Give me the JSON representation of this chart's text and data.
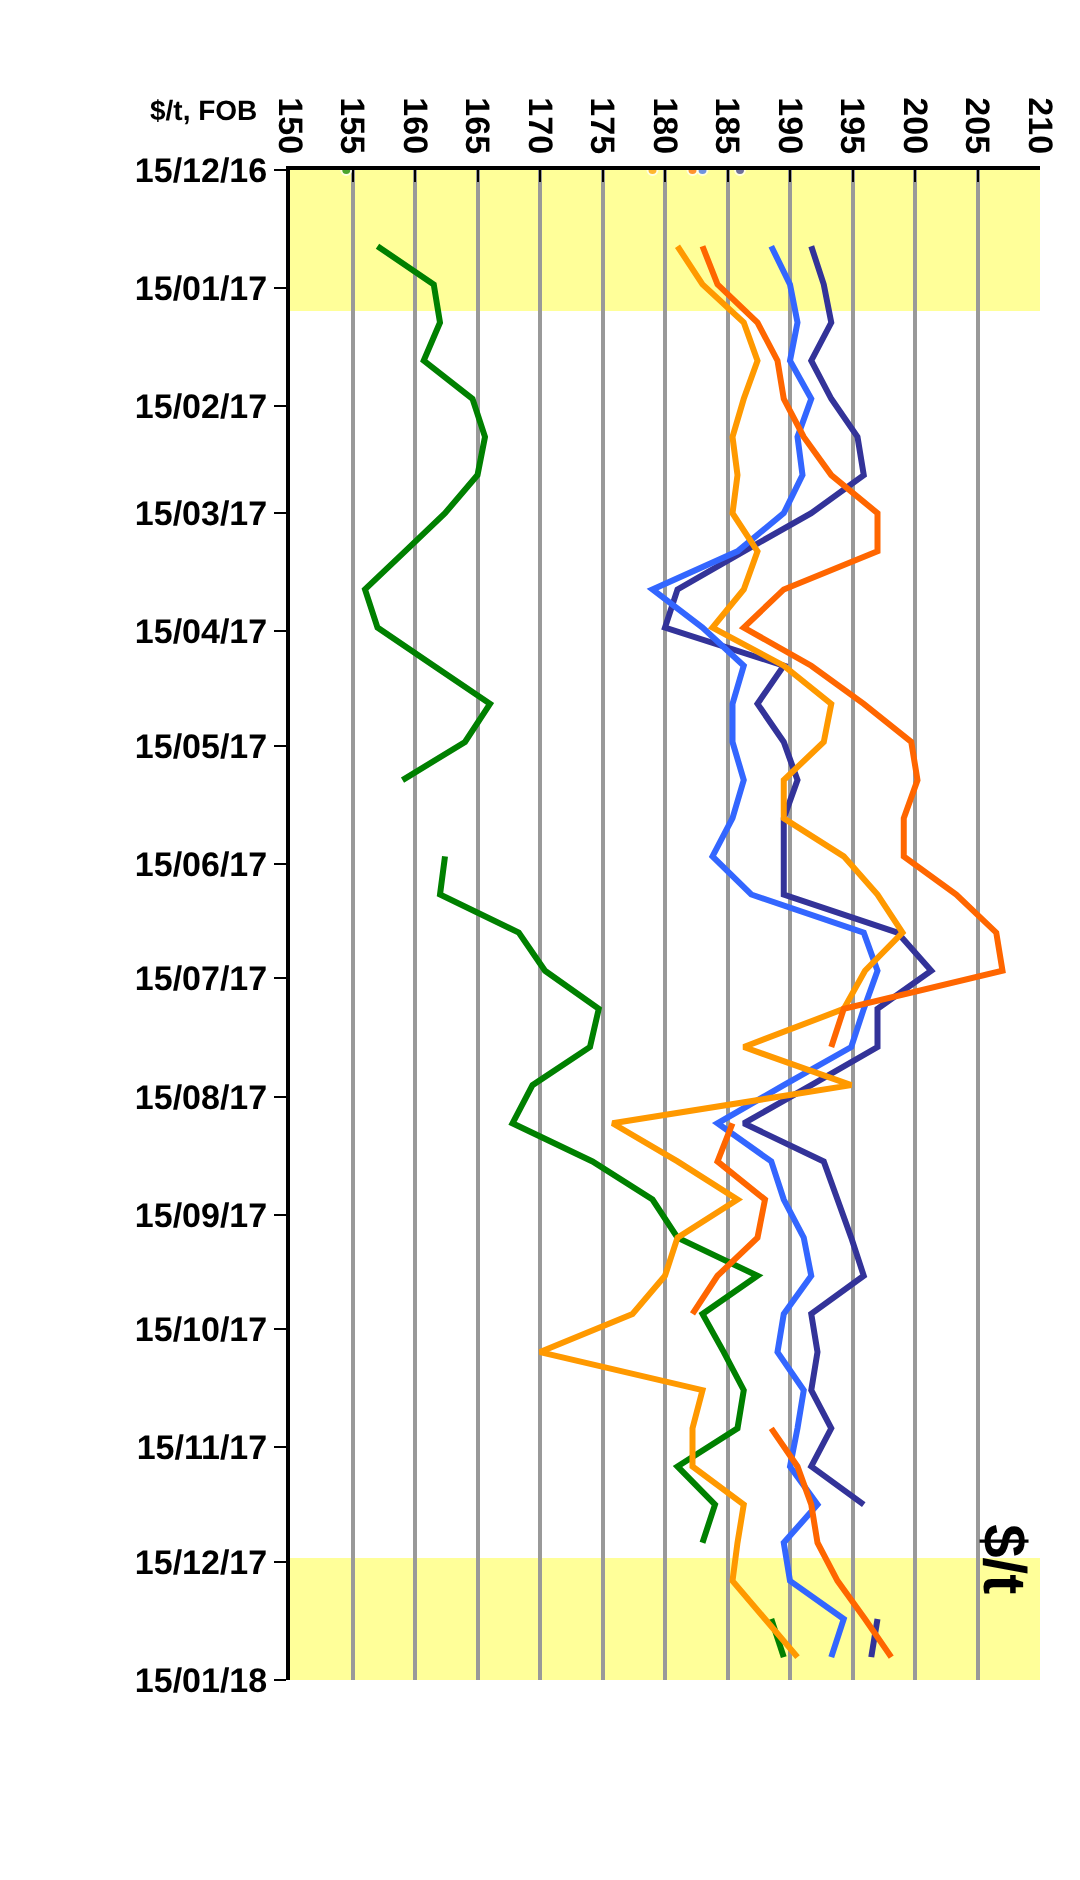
{
  "chart_data": {
    "type": "line",
    "orientation": "horizontal",
    "xlabel": "$/t, FOB",
    "ylabel": "$/t",
    "x": [
      "2016-12-15",
      "2016-12-25",
      "2017-01-04",
      "2017-01-14",
      "2017-01-24",
      "2017-02-03",
      "2017-02-13",
      "2017-02-23",
      "2017-03-05",
      "2017-03-15",
      "2017-03-25",
      "2017-04-04",
      "2017-04-14",
      "2017-04-24",
      "2017-05-04",
      "2017-05-14",
      "2017-05-24",
      "2017-06-03",
      "2017-06-13",
      "2017-06-23",
      "2017-07-03",
      "2017-07-13",
      "2017-07-23",
      "2017-08-02",
      "2017-08-12",
      "2017-08-22",
      "2017-09-01",
      "2017-09-11",
      "2017-09-21",
      "2017-10-01",
      "2017-10-11",
      "2017-10-21",
      "2017-10-31",
      "2017-11-10",
      "2017-11-20",
      "2017-11-30",
      "2017-12-10",
      "2017-12-20",
      "2017-12-30",
      "2018-01-09"
    ],
    "series": [
      {
        "color": "#008000",
        "values": [
          154.5,
          null,
          157,
          161.5,
          162,
          160.7,
          164.6,
          165.6,
          165,
          162.4,
          159.2,
          156,
          157,
          161.5,
          166,
          164,
          159,
          null,
          162.4,
          162,
          168.3,
          170.4,
          174.7,
          174,
          169.4,
          167.8,
          174.2,
          179,
          181,
          187.4,
          183,
          184.7,
          186.3,
          185.8,
          181,
          184,
          183,
          null,
          188.5,
          189.5
        ]
      },
      {
        "color": "#333399",
        "values": [
          186,
          null,
          191.7,
          192.7,
          193.3,
          191.7,
          193.3,
          195.4,
          195.9,
          191.7,
          186.3,
          181,
          180,
          189.5,
          187.4,
          189.5,
          190.6,
          189.5,
          189.5,
          189.5,
          198.6,
          201.3,
          197,
          197,
          191.7,
          186.3,
          192.7,
          193.8,
          194.9,
          195.9,
          191.7,
          192.2,
          191.7,
          193.3,
          191.7,
          195.9,
          null,
          null,
          197,
          196.5
        ]
      },
      {
        "color": "#3366ff",
        "values": [
          183,
          null,
          188.5,
          190,
          190.6,
          190,
          191.7,
          190.6,
          191,
          189.5,
          185.8,
          179,
          183,
          186.3,
          185.4,
          185.4,
          186.3,
          185.4,
          183.8,
          186.9,
          195.9,
          197,
          195.9,
          194.9,
          189.5,
          184.2,
          188.5,
          189.5,
          191.1,
          191.7,
          189.5,
          189,
          191.1,
          190.6,
          190,
          192.2,
          189.5,
          190,
          194.3,
          193.3
        ]
      },
      {
        "color": "#ff9900",
        "values": [
          179,
          null,
          181,
          183,
          186.3,
          187.4,
          186.3,
          185.4,
          185.8,
          185.4,
          187.4,
          186.3,
          183.8,
          189.5,
          193.3,
          192.7,
          189.5,
          189.5,
          194.3,
          197,
          199,
          196,
          194.3,
          186.3,
          194.9,
          175.8,
          181,
          185.8,
          181,
          180,
          177.4,
          170,
          183,
          182.2,
          182.2,
          186.3,
          185.8,
          185.4,
          188,
          190.6
        ]
      },
      {
        "color": "#ff6600",
        "values": [
          182.2,
          null,
          183,
          184.2,
          187.4,
          189,
          189.5,
          191.1,
          193.3,
          197,
          197,
          189.5,
          186.3,
          191.7,
          195.9,
          199.7,
          200.2,
          199.1,
          199.1,
          203.3,
          206.5,
          207,
          194.3,
          193.3,
          null,
          185.4,
          184.2,
          188,
          187.4,
          184.2,
          182.2,
          null,
          null,
          188.5,
          190.6,
          191.7,
          192.2,
          193.8,
          196,
          198.1
        ]
      }
    ],
    "xlim": [
      150,
      210
    ],
    "xticks": [
      150,
      155,
      160,
      165,
      170,
      175,
      180,
      185,
      190,
      195,
      200,
      205,
      210
    ],
    "ylim": [
      "2018-01-15",
      "2016-12-15"
    ],
    "yticks": [
      {
        "value": "2016-12-15",
        "label": "15/12/16"
      },
      {
        "value": "2017-01-15",
        "label": "15/01/17"
      },
      {
        "value": "2017-02-15",
        "label": "15/02/17"
      },
      {
        "value": "2017-03-15",
        "label": "15/03/17"
      },
      {
        "value": "2017-04-15",
        "label": "15/04/17"
      },
      {
        "value": "2017-05-15",
        "label": "15/05/17"
      },
      {
        "value": "2017-06-15",
        "label": "15/06/17"
      },
      {
        "value": "2017-07-15",
        "label": "15/07/17"
      },
      {
        "value": "2017-08-15",
        "label": "15/08/17"
      },
      {
        "value": "2017-09-15",
        "label": "15/09/17"
      },
      {
        "value": "2017-10-15",
        "label": "15/10/17"
      },
      {
        "value": "2017-11-15",
        "label": "15/11/17"
      },
      {
        "value": "2017-12-15",
        "label": "15/12/17"
      },
      {
        "value": "2018-01-15",
        "label": "15/01/18"
      }
    ],
    "bands": [
      {
        "axis": "y",
        "from": "2016-12-15",
        "to": "2017-01-21",
        "color": "#ffff99"
      },
      {
        "axis": "y",
        "from": "2017-12-14",
        "to": "2018-01-15",
        "color": "#ffff99"
      }
    ],
    "grid": "x",
    "marker": "none",
    "line_style": "solid"
  }
}
